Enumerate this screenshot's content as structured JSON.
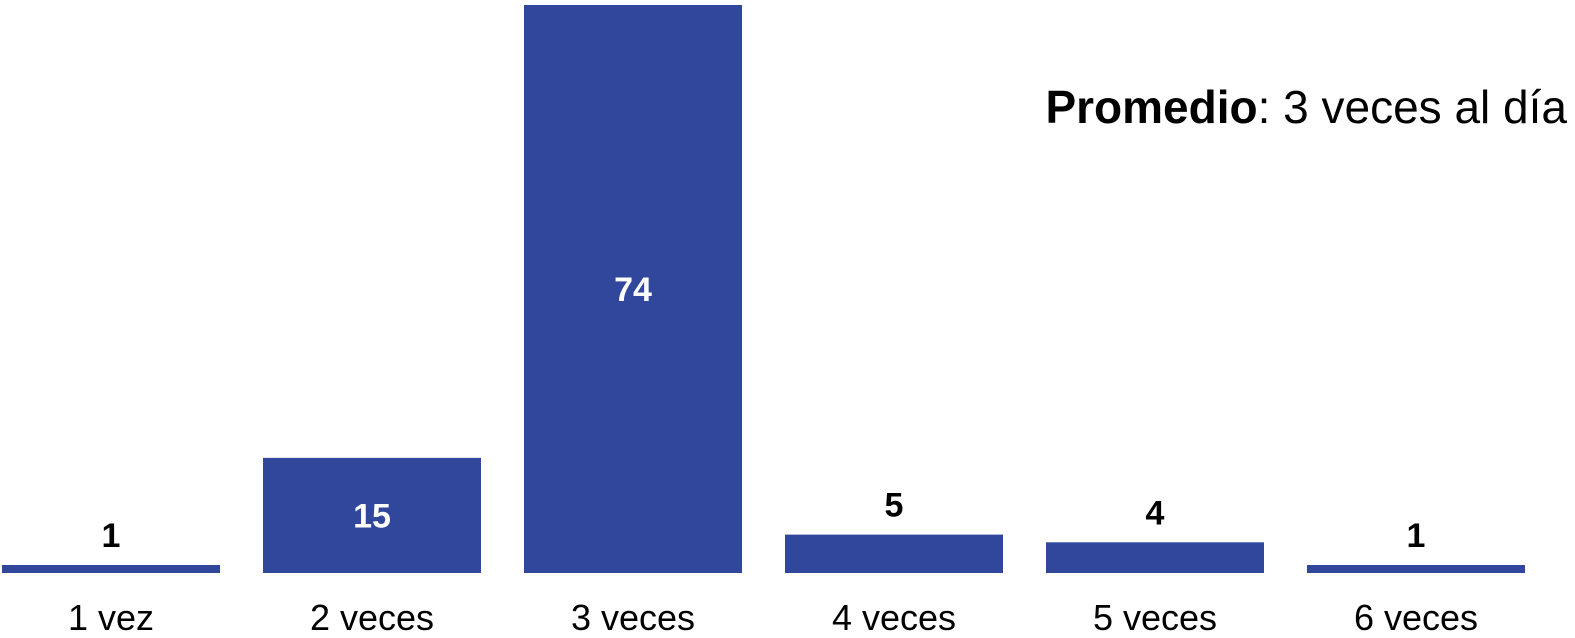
{
  "chart_data": {
    "type": "bar",
    "categories": [
      "1 vez",
      "2 veces",
      "3 veces",
      "4 veces",
      "5 veces",
      "6 veces"
    ],
    "values": [
      1,
      15,
      74,
      5,
      4,
      1
    ],
    "ylim": [
      0,
      74
    ],
    "grid": false,
    "colors": {
      "bar": "#30479b",
      "label_inside": "#ffffff",
      "label_outside": "#000000"
    },
    "annotation": {
      "bold": "Promedio",
      "rest": ": 3 veces al día"
    }
  }
}
